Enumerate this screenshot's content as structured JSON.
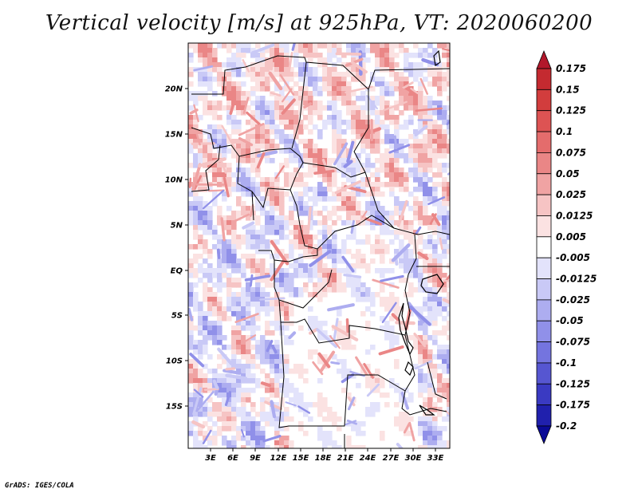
{
  "title": "Vertical velocity [m/s] at 925hPa, VT: 2020060200",
  "credit": "GrADS: IGES/COLA",
  "lat_labels": [
    "20N",
    "15N",
    "10N",
    "5N",
    "EQ",
    "5S",
    "10S",
    "15S"
  ],
  "lon_labels": [
    "3E",
    "6E",
    "9E",
    "12E",
    "15E",
    "18E",
    "21E",
    "24E",
    "27E",
    "30E",
    "33E"
  ],
  "colorbar": {
    "labels": [
      "0.175",
      "0.15",
      "0.125",
      "0.1",
      "0.075",
      "0.05",
      "0.025",
      "0.0125",
      "0.005",
      "-0.005",
      "-0.0125",
      "-0.025",
      "-0.05",
      "-0.075",
      "-0.1",
      "-0.125",
      "-0.175",
      "-0.2"
    ],
    "colors": [
      "#b2182b",
      "#c42a30",
      "#d23d3d",
      "#dd5353",
      "#e46c6c",
      "#ea8686",
      "#f0a3a3",
      "#f6c4c4",
      "#fbe2e2",
      "#ffffff",
      "#e3e3fb",
      "#c9c9f6",
      "#adadf0",
      "#9090e9",
      "#7474df",
      "#5656d1",
      "#3a3ac2",
      "#2020ad",
      "#0a0a96"
    ]
  }
}
